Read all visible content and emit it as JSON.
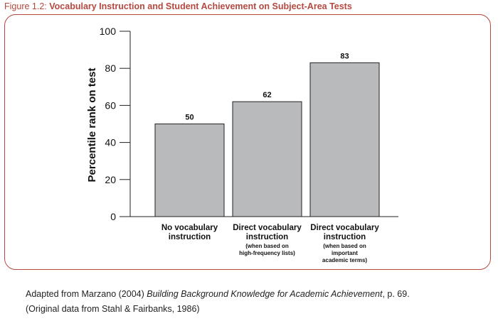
{
  "figure": {
    "label": "Figure 1.2:",
    "title": "Vocabulary Instruction and Student Achievement on Subject-Area Tests"
  },
  "source": {
    "line1_prefix": "Adapted from Marzano (2004) ",
    "line1_book": "Building Background Knowledge for Academic Achievement",
    "line1_suffix": ", p. 69.",
    "line2": "(Original data from Stahl & Fairbanks, 1986)"
  },
  "colors": {
    "bar": "#b9babc",
    "accent": "#b5483f",
    "axis": "#222222"
  },
  "chart_data": {
    "type": "bar",
    "title": "",
    "ylabel": "Percentile rank on test",
    "xlabel": "",
    "ylim": [
      0,
      100
    ],
    "yticks": [
      0,
      20,
      40,
      60,
      80,
      100
    ],
    "grid": false,
    "categories": [
      {
        "main": [
          "No vocabulary",
          "instruction"
        ],
        "sub": []
      },
      {
        "main": [
          "Direct vocabulary",
          "instruction"
        ],
        "sub": [
          "(when based on",
          "high-frequency lists)"
        ]
      },
      {
        "main": [
          "Direct vocabulary",
          "instruction"
        ],
        "sub": [
          "(when based on",
          "important",
          "academic terms)"
        ]
      }
    ],
    "values": [
      50,
      62,
      83
    ]
  }
}
